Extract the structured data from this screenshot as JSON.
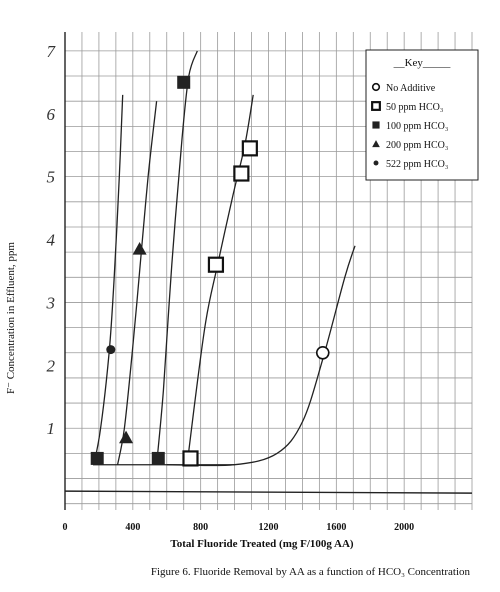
{
  "chart_data": {
    "type": "scatter",
    "title": "",
    "caption": "Figure 6. Fluoride Removal by AA as a function of HCO₃ Concentration",
    "xlabel": "Total Fluoride Treated (mg F/100g AA)",
    "ylabel": "F⁻ Concentration in Effluent, ppm",
    "xlim": [
      0,
      2400
    ],
    "ylim": [
      -0.3,
      7.3
    ],
    "x_ticks": [
      0,
      400,
      800,
      1200,
      1600,
      2000
    ],
    "x_tick_labels": [
      "0",
      "400",
      "800",
      "1200",
      "1600",
      "2000"
    ],
    "y_ticks": [
      1,
      2,
      3,
      4,
      5,
      6,
      7
    ],
    "y_tick_labels": [
      "1",
      "2",
      "3",
      "4",
      "5",
      "6",
      "7"
    ],
    "grid": true,
    "legend_position": "top-right",
    "legend_title": "__Key_____",
    "series": [
      {
        "name": "No Additive",
        "marker": "open-circle",
        "points": [
          [
            1520,
            2.2
          ]
        ],
        "curve": [
          [
            600,
            0.42
          ],
          [
            1000,
            0.42
          ],
          [
            1250,
            0.6
          ],
          [
            1400,
            1.1
          ],
          [
            1520,
            2.1
          ],
          [
            1650,
            3.4
          ],
          [
            1710,
            3.9
          ]
        ]
      },
      {
        "name": "50 ppm HCO₃",
        "marker": "open-square",
        "points": [
          [
            740,
            0.52
          ],
          [
            890,
            3.6
          ],
          [
            1040,
            5.05
          ],
          [
            1090,
            5.45
          ]
        ],
        "curve": [
          [
            720,
            0.42
          ],
          [
            760,
            1.3
          ],
          [
            830,
            2.7
          ],
          [
            900,
            3.6
          ],
          [
            990,
            4.7
          ],
          [
            1060,
            5.5
          ],
          [
            1110,
            6.3
          ]
        ]
      },
      {
        "name": "100 ppm HCO₃",
        "marker": "filled-square",
        "points": [
          [
            190,
            0.52
          ],
          [
            550,
            0.52
          ],
          [
            700,
            6.5
          ]
        ],
        "curve": [
          [
            540,
            0.42
          ],
          [
            580,
            1.6
          ],
          [
            630,
            3.6
          ],
          [
            690,
            5.6
          ],
          [
            730,
            6.6
          ],
          [
            780,
            7.0
          ]
        ]
      },
      {
        "name": "200 ppm HCO₃",
        "marker": "filled-triangle",
        "points": [
          [
            360,
            0.85
          ],
          [
            440,
            3.85
          ]
        ],
        "curve": [
          [
            310,
            0.42
          ],
          [
            350,
            1.0
          ],
          [
            400,
            2.3
          ],
          [
            450,
            3.8
          ],
          [
            490,
            5.0
          ],
          [
            540,
            6.2
          ]
        ]
      },
      {
        "name": "522 ppm HCO₃",
        "marker": "filled-circle",
        "points": [
          [
            270,
            2.25
          ]
        ],
        "curve": [
          [
            170,
            0.42
          ],
          [
            210,
            1.0
          ],
          [
            260,
            2.2
          ],
          [
            290,
            3.4
          ],
          [
            320,
            5.0
          ],
          [
            340,
            6.3
          ]
        ]
      }
    ]
  }
}
